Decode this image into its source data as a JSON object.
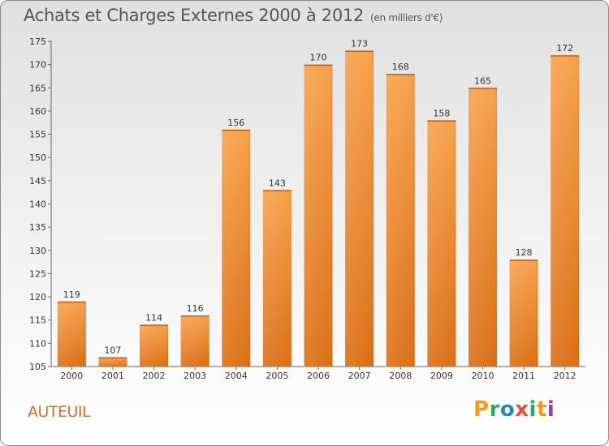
{
  "title": "Achats et Charges Externes 2000 à 2012",
  "unit": "(en milliers d'€)",
  "city": "AUTEUIL",
  "brand": {
    "letters": [
      "P",
      "r",
      "o",
      "x",
      "i",
      "t",
      "i"
    ],
    "colors": [
      "#f39c12",
      "#27ae60",
      "#2e86c1",
      "#e74c3c",
      "#27ae60",
      "#f39c12",
      "#8e44ad"
    ]
  },
  "colors": {
    "bar": "#f28c28",
    "bar_light": "#f7a85a",
    "bar_dark": "#d86a10",
    "axis": "#666666",
    "title": "#555555",
    "city": "#e06c1f"
  },
  "chart_data": {
    "type": "bar",
    "categories": [
      "2000",
      "2001",
      "2002",
      "2003",
      "2004",
      "2005",
      "2006",
      "2007",
      "2008",
      "2009",
      "2010",
      "2011",
      "2012"
    ],
    "values": [
      119,
      107,
      114,
      116,
      156,
      143,
      170,
      173,
      168,
      158,
      165,
      128,
      172
    ],
    "ylim": [
      105,
      175
    ],
    "yticks": [
      105,
      110,
      115,
      120,
      125,
      130,
      135,
      140,
      145,
      150,
      155,
      160,
      165,
      170,
      175
    ],
    "grid": false,
    "data_labels": true
  }
}
